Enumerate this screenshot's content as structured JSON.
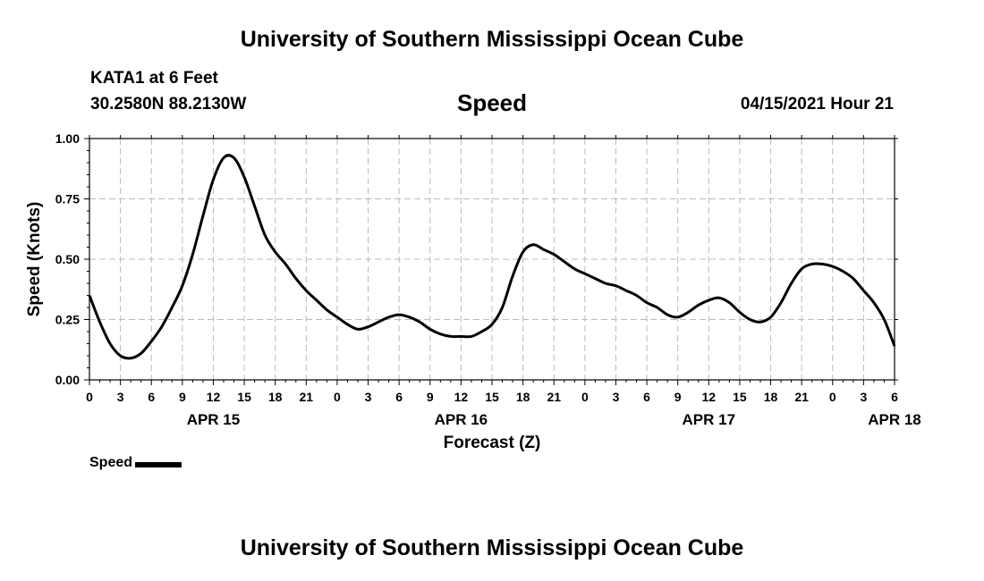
{
  "header": {
    "title": "University of Southern Mississippi Ocean Cube",
    "station": "KATA1 at 6 Feet",
    "coords": "30.2580N  88.2130W",
    "datetime": "04/15/2021 Hour 21"
  },
  "footer": {
    "title": "University of Southern Mississippi Ocean Cube"
  },
  "legend": {
    "label": "Speed"
  },
  "colors": {
    "line": "#000000",
    "grid": "#bbbbbb"
  },
  "chart_data": {
    "type": "line",
    "title": "Speed",
    "xlabel": "Forecast (Z)",
    "ylabel": "Speed (Knots)",
    "ylim": [
      0,
      1
    ],
    "grid": true,
    "legend_position": "bottom-left",
    "y_ticks": [
      "0.00",
      "0.25",
      "0.50",
      "0.75",
      "1.00"
    ],
    "x_tick_labels": [
      "0",
      "3",
      "6",
      "9",
      "12",
      "15",
      "18",
      "21",
      "0",
      "3",
      "6",
      "9",
      "12",
      "15",
      "18",
      "21",
      "0",
      "3",
      "6",
      "9",
      "12",
      "15",
      "18",
      "21",
      "0",
      "3",
      "6"
    ],
    "date_labels": [
      {
        "hours_from_start": 12,
        "label": "APR 15"
      },
      {
        "hours_from_start": 36,
        "label": "APR 16"
      },
      {
        "hours_from_start": 60,
        "label": "APR 17"
      },
      {
        "hours_from_start": 78,
        "label": "APR 18"
      }
    ],
    "xlim_hours": [
      0,
      78
    ],
    "series": [
      {
        "name": "Speed",
        "x_hours": [
          0,
          1,
          2,
          3,
          4,
          5,
          6,
          7,
          8,
          9,
          10,
          11,
          12,
          13,
          14,
          15,
          16,
          17,
          18,
          19,
          20,
          21,
          22,
          23,
          24,
          25,
          26,
          27,
          28,
          29,
          30,
          31,
          32,
          33,
          34,
          35,
          36,
          37,
          38,
          39,
          40,
          41,
          42,
          43,
          44,
          45,
          46,
          47,
          48,
          49,
          50,
          51,
          52,
          53,
          54,
          55,
          56,
          57,
          58,
          59,
          60,
          61,
          62,
          63,
          64,
          65,
          66,
          67,
          68,
          69,
          70,
          71,
          72,
          73,
          74,
          75,
          76,
          77,
          78
        ],
        "values": [
          0.35,
          0.24,
          0.15,
          0.1,
          0.09,
          0.11,
          0.16,
          0.22,
          0.3,
          0.39,
          0.52,
          0.68,
          0.83,
          0.92,
          0.92,
          0.84,
          0.72,
          0.6,
          0.53,
          0.48,
          0.42,
          0.37,
          0.33,
          0.29,
          0.26,
          0.23,
          0.21,
          0.22,
          0.24,
          0.26,
          0.27,
          0.26,
          0.24,
          0.21,
          0.19,
          0.18,
          0.18,
          0.18,
          0.2,
          0.23,
          0.3,
          0.43,
          0.53,
          0.56,
          0.54,
          0.52,
          0.49,
          0.46,
          0.44,
          0.42,
          0.4,
          0.39,
          0.37,
          0.35,
          0.32,
          0.3,
          0.27,
          0.26,
          0.28,
          0.31,
          0.33,
          0.34,
          0.32,
          0.28,
          0.25,
          0.24,
          0.26,
          0.32,
          0.4,
          0.46,
          0.48,
          0.48,
          0.47,
          0.45,
          0.42,
          0.37,
          0.32,
          0.25,
          0.14
        ]
      }
    ]
  }
}
